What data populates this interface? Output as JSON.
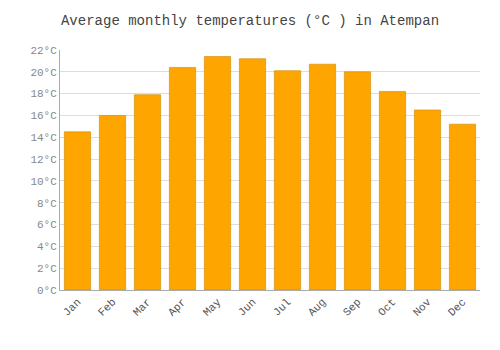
{
  "chart_data": {
    "type": "bar",
    "title": "Average monthly temperatures (°C ) in Atempan",
    "categories": [
      "Jan",
      "Feb",
      "Mar",
      "Apr",
      "May",
      "Jun",
      "Jul",
      "Aug",
      "Sep",
      "Oct",
      "Nov",
      "Dec"
    ],
    "values": [
      14.5,
      16.0,
      17.9,
      20.4,
      21.4,
      21.2,
      20.1,
      20.7,
      20.0,
      18.2,
      16.5,
      15.2
    ],
    "color": "#FFA500",
    "ylim": [
      0,
      22
    ],
    "yticks": [
      {
        "value": 0,
        "label": "0°C"
      },
      {
        "value": 2,
        "label": "2°C"
      },
      {
        "value": 4,
        "label": "4°C"
      },
      {
        "value": 6,
        "label": "6°C"
      },
      {
        "value": 8,
        "label": "8°C"
      },
      {
        "value": 10,
        "label": "10°C"
      },
      {
        "value": 12,
        "label": "12°C"
      },
      {
        "value": 14,
        "label": "14°C"
      },
      {
        "value": 16,
        "label": "16°C"
      },
      {
        "value": 18,
        "label": "18°C"
      },
      {
        "value": 20,
        "label": "20°C"
      },
      {
        "value": 22,
        "label": "22°C"
      }
    ],
    "grid": true
  }
}
